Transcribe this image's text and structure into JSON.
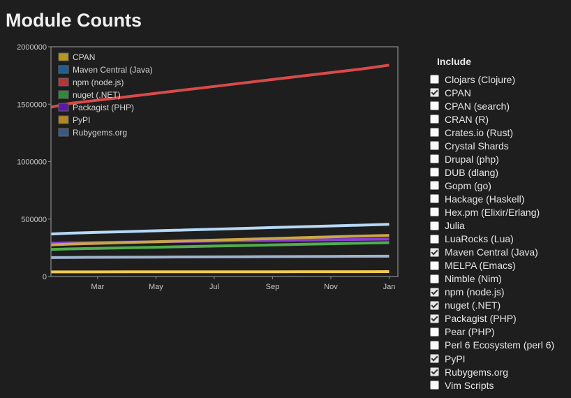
{
  "title": "Module Counts",
  "include_title": "Include",
  "options": [
    {
      "label": "Clojars (Clojure)",
      "checked": false
    },
    {
      "label": "CPAN",
      "checked": true
    },
    {
      "label": "CPAN (search)",
      "checked": false
    },
    {
      "label": "CRAN (R)",
      "checked": false
    },
    {
      "label": "Crates.io (Rust)",
      "checked": false
    },
    {
      "label": "Crystal Shards",
      "checked": false
    },
    {
      "label": "Drupal (php)",
      "checked": false
    },
    {
      "label": "DUB (dlang)",
      "checked": false
    },
    {
      "label": "Gopm (go)",
      "checked": false
    },
    {
      "label": "Hackage (Haskell)",
      "checked": false
    },
    {
      "label": "Hex.pm (Elixir/Erlang)",
      "checked": false
    },
    {
      "label": "Julia",
      "checked": false
    },
    {
      "label": "LuaRocks (Lua)",
      "checked": false
    },
    {
      "label": "Maven Central (Java)",
      "checked": true
    },
    {
      "label": "MELPA (Emacs)",
      "checked": false
    },
    {
      "label": "Nimble (Nim)",
      "checked": false
    },
    {
      "label": "npm (node.js)",
      "checked": true
    },
    {
      "label": "nuget (.NET)",
      "checked": true
    },
    {
      "label": "Packagist (PHP)",
      "checked": true
    },
    {
      "label": "Pear (PHP)",
      "checked": false
    },
    {
      "label": "Perl 6 Ecosystem (perl 6)",
      "checked": false
    },
    {
      "label": "PyPI",
      "checked": true
    },
    {
      "label": "Rubygems.org",
      "checked": true
    },
    {
      "label": "Vim Scripts",
      "checked": false
    }
  ],
  "chart_data": {
    "type": "line",
    "title": "Module Counts",
    "xlabel": "",
    "ylabel": "",
    "x": [
      0,
      1,
      2,
      3,
      4,
      5,
      6,
      7,
      8,
      9,
      10,
      11,
      12
    ],
    "x_ticks": [
      {
        "x": 2,
        "label": "Mar"
      },
      {
        "x": 4,
        "label": "May"
      },
      {
        "x": 6,
        "label": "Jul"
      },
      {
        "x": 8,
        "label": "Sep"
      },
      {
        "x": 10,
        "label": "Nov"
      },
      {
        "x": 12,
        "label": "Jan"
      }
    ],
    "xlim": [
      0.4,
      12.3
    ],
    "ylim": [
      0,
      2000000
    ],
    "y_ticks": [
      0,
      500000,
      1000000,
      1500000,
      2000000
    ],
    "legend_position": "top-left",
    "series": [
      {
        "name": "CPAN",
        "legend_color": "#b8961f",
        "color": "#f1c853",
        "values": [
          40000,
          40200,
          40400,
          40600,
          40800,
          41000,
          41200,
          41400,
          41600,
          41800,
          42000,
          42200,
          42400
        ]
      },
      {
        "name": "Maven Central (Java)",
        "legend_color": "#1f5d99",
        "color": "#b6d9f7",
        "values": [
          370000,
          377000,
          384000,
          391000,
          398000,
          405000,
          412000,
          419000,
          426000,
          433000,
          440000,
          447000,
          454000
        ]
      },
      {
        "name": "npm (node.js)",
        "legend_color": "#b93535",
        "color": "#d94a4a",
        "values": [
          1475000,
          1505000,
          1535000,
          1565000,
          1595000,
          1625000,
          1655000,
          1685000,
          1715000,
          1745000,
          1775000,
          1805000,
          1840000
        ]
      },
      {
        "name": "nuget (.NET)",
        "legend_color": "#2e8b3a",
        "color": "#4fae4f",
        "values": [
          235000,
          240000,
          245000,
          250000,
          255000,
          260000,
          265000,
          270000,
          275000,
          280000,
          285000,
          290000,
          295000
        ]
      },
      {
        "name": "Packagist (PHP)",
        "legend_color": "#5a1aa8",
        "color": "#8a3fd0",
        "values": [
          290000,
          293000,
          296000,
          299000,
          302000,
          305000,
          308000,
          311000,
          314000,
          317000,
          320000,
          323000,
          326000
        ]
      },
      {
        "name": "PyPI",
        "legend_color": "#b08a20",
        "color": "#caa64a",
        "values": [
          275000,
          282000,
          289000,
          296000,
          303000,
          310000,
          317000,
          324000,
          331000,
          338000,
          345000,
          352000,
          358000
        ]
      },
      {
        "name": "Rubygems.org",
        "legend_color": "#355a86",
        "color": "#9fb3cc",
        "values": [
          165000,
          166000,
          167000,
          168000,
          169000,
          170000,
          171000,
          172000,
          173000,
          174000,
          175000,
          176000,
          177000
        ]
      }
    ]
  }
}
